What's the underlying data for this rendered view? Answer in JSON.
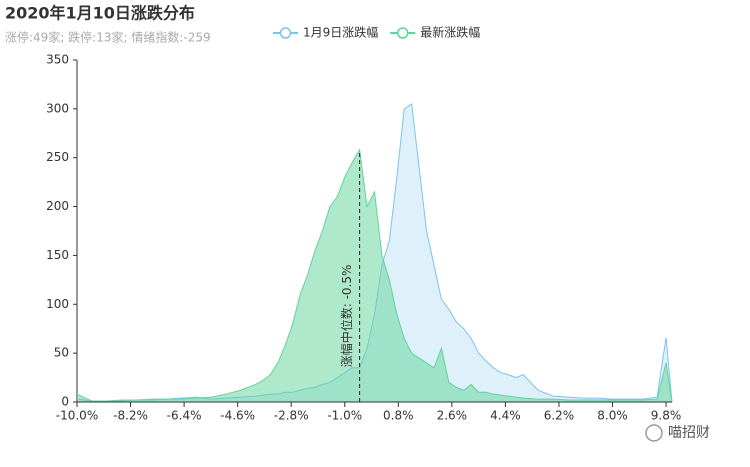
{
  "chart_data": {
    "type": "area",
    "title": "2020年1月10日涨跌分布",
    "subtitle": "涨停:49家; 跌停:13家; 情绪指数:-259",
    "annotation": "涨幅中位数: -0.5%",
    "median": -0.5,
    "x": [
      -10,
      -9.5,
      -9,
      -8.5,
      -8,
      -7.5,
      -7,
      -6.5,
      -6,
      -5.5,
      -5,
      -4.5,
      -4,
      -3.75,
      -3.5,
      -3.25,
      -3,
      -2.75,
      -2.5,
      -2.25,
      -2,
      -1.75,
      -1.5,
      -1.25,
      -1,
      -0.75,
      -0.5,
      -0.25,
      0,
      0.25,
      0.5,
      0.75,
      1,
      1.25,
      1.5,
      1.75,
      2,
      2.25,
      2.5,
      2.75,
      3,
      3.25,
      3.5,
      3.75,
      4,
      4.25,
      4.5,
      4.75,
      5,
      5.5,
      6,
      6.5,
      7,
      7.5,
      8,
      8.5,
      9,
      9.5,
      9.8,
      10
    ],
    "series": [
      {
        "name": "1月9日涨跌幅",
        "color": "#7cc4ec",
        "values": [
          3,
          1,
          1,
          2,
          2,
          3,
          3,
          4,
          5,
          3,
          4,
          5,
          6,
          7,
          8,
          8,
          10,
          10,
          12,
          14,
          15,
          18,
          20,
          25,
          30,
          35,
          35,
          55,
          90,
          140,
          165,
          230,
          300,
          305,
          240,
          175,
          140,
          105,
          95,
          82,
          75,
          65,
          50,
          42,
          35,
          30,
          28,
          25,
          28,
          12,
          6,
          5,
          4,
          4,
          3,
          3,
          3,
          5,
          66,
          0
        ]
      },
      {
        "name": "最新涨跌幅",
        "color": "#5fd49a",
        "values": [
          8,
          1,
          1,
          1,
          2,
          2,
          3,
          3,
          4,
          5,
          8,
          12,
          18,
          22,
          28,
          40,
          58,
          80,
          110,
          130,
          155,
          175,
          200,
          210,
          230,
          245,
          258,
          200,
          215,
          150,
          125,
          90,
          65,
          50,
          45,
          40,
          35,
          55,
          20,
          15,
          12,
          18,
          10,
          10,
          8,
          7,
          6,
          5,
          4,
          3,
          3,
          2,
          2,
          2,
          2,
          2,
          2,
          3,
          40,
          0
        ]
      }
    ],
    "xlim": [
      -10,
      10
    ],
    "xticks": [
      {
        "value": -10,
        "label": "-10.0%"
      },
      {
        "value": -8.2,
        "label": "-8.2%"
      },
      {
        "value": -6.4,
        "label": "-6.4%"
      },
      {
        "value": -4.6,
        "label": "-4.6%"
      },
      {
        "value": -2.8,
        "label": "-2.8%"
      },
      {
        "value": -1,
        "label": "-1.0%"
      },
      {
        "value": 0.8,
        "label": "0.8%"
      },
      {
        "value": 2.6,
        "label": "2.6%"
      },
      {
        "value": 4.4,
        "label": "4.4%"
      },
      {
        "value": 6.2,
        "label": "6.2%"
      },
      {
        "value": 8,
        "label": "8.0%"
      },
      {
        "value": 9.8,
        "label": "9.8%"
      }
    ],
    "ylim": [
      0,
      350
    ],
    "yticks": [
      0,
      50,
      100,
      150,
      200,
      250,
      300,
      350
    ]
  },
  "watermark": "喵招财"
}
